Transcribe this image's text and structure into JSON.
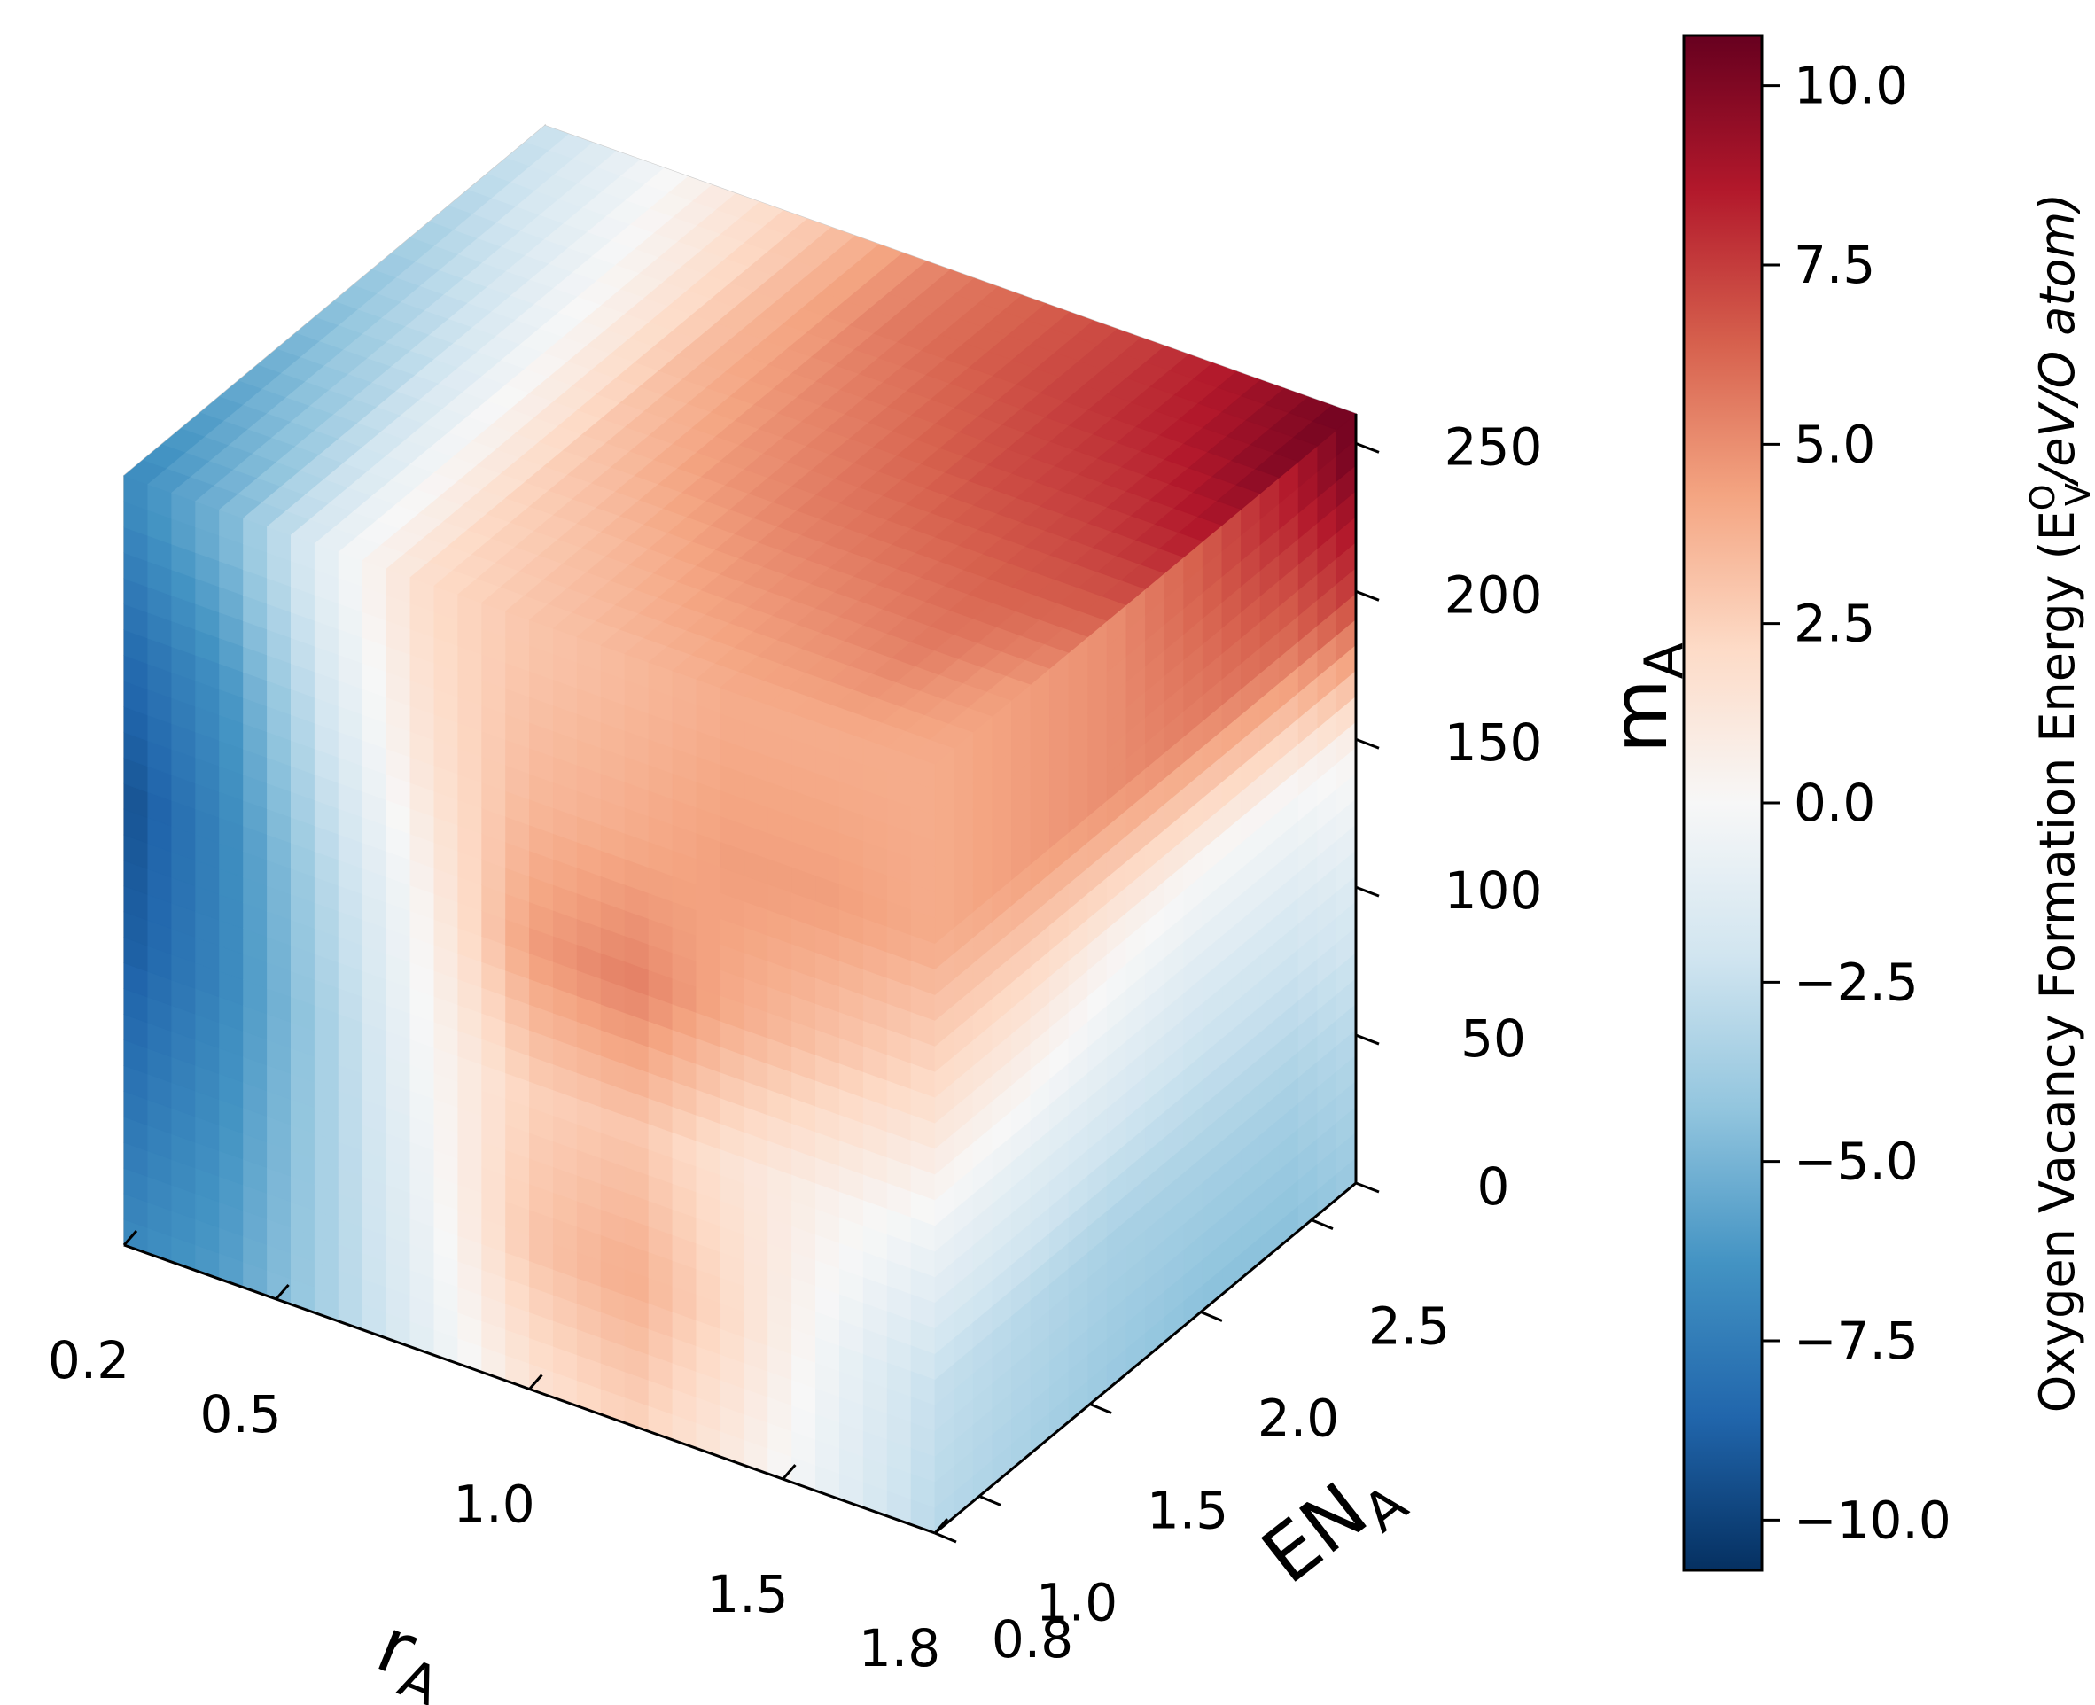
{
  "chart_data": {
    "type": "heatmap",
    "subtype": "3d-voxel-cube",
    "axes": {
      "x": {
        "label": "r",
        "label_sub": "A",
        "ticks": [
          "0.2",
          "0.5",
          "1.0",
          "1.5",
          "1.8"
        ],
        "tick_values": [
          0.2,
          0.5,
          1.0,
          1.5,
          1.8
        ],
        "range": [
          0.2,
          1.8
        ]
      },
      "y": {
        "label": "EN",
        "label_sub": "A",
        "ticks": [
          "0.8",
          "1.0",
          "1.5",
          "2.0",
          "2.5"
        ],
        "tick_values": [
          0.8,
          1.0,
          1.5,
          2.0,
          2.5
        ],
        "range": [
          0.8,
          2.7
        ]
      },
      "z": {
        "label": "m",
        "label_sub": "A",
        "ticks": [
          "0",
          "50",
          "100",
          "150",
          "200",
          "250"
        ],
        "tick_values": [
          0,
          50,
          100,
          150,
          200,
          250
        ],
        "range": [
          0,
          260
        ]
      }
    },
    "faces": {
      "front_rA_mA_at_EN_min": {
        "rA": [
          0.2,
          0.4,
          0.6,
          0.8,
          1.0,
          1.2,
          1.4,
          1.6,
          1.8
        ],
        "mA": [
          0,
          50,
          100,
          150,
          200,
          250
        ],
        "values": [
          [
            -7.0,
            -6.0,
            -3.5,
            -1.0,
            1.5,
            2.5,
            1.0,
            -1.0,
            -3.0
          ],
          [
            -8.0,
            -6.5,
            -3.5,
            -0.5,
            3.0,
            4.0,
            2.0,
            -0.5,
            -2.5
          ],
          [
            -9.0,
            -7.0,
            -3.5,
            0.0,
            2.5,
            3.0,
            1.5,
            0.5,
            -0.5
          ],
          [
            -9.5,
            -7.0,
            -3.0,
            0.5,
            4.5,
            5.5,
            4.0,
            3.0,
            2.0
          ],
          [
            -8.5,
            -6.5,
            -2.0,
            1.5,
            3.5,
            4.0,
            4.5,
            4.5,
            4.0
          ],
          [
            -7.0,
            -5.0,
            -1.0,
            2.0,
            3.0,
            3.5,
            4.0,
            4.0,
            4.0
          ]
        ]
      },
      "side_EN_mA_at_rA_max": {
        "EN": [
          0.8,
          1.2,
          1.6,
          2.0,
          2.4,
          2.7
        ],
        "mA": [
          0,
          50,
          100,
          150,
          200,
          250
        ],
        "values": [
          [
            -3.0,
            -3.5,
            -4.0,
            -4.5,
            -4.5,
            -4.0
          ],
          [
            -2.5,
            -3.0,
            -3.5,
            -3.5,
            -3.5,
            -3.0
          ],
          [
            -0.5,
            -1.0,
            -1.5,
            -2.0,
            -2.0,
            -1.5
          ],
          [
            2.0,
            1.5,
            0.5,
            0.0,
            0.0,
            0.5
          ],
          [
            4.0,
            4.5,
            5.0,
            5.5,
            6.0,
            7.5
          ],
          [
            4.0,
            4.5,
            5.0,
            6.5,
            8.5,
            10.5
          ]
        ]
      },
      "top_rA_EN_at_mA_max": {
        "rA": [
          0.2,
          0.4,
          0.6,
          0.8,
          1.0,
          1.2,
          1.4,
          1.6,
          1.8
        ],
        "EN": [
          0.8,
          1.2,
          1.6,
          2.0,
          2.4,
          2.7
        ],
        "values": [
          [
            -7.0,
            -5.0,
            -1.0,
            2.0,
            3.0,
            3.5,
            4.0,
            4.0,
            4.0
          ],
          [
            -6.0,
            -4.0,
            -0.5,
            2.5,
            3.5,
            4.5,
            5.0,
            5.5,
            4.5
          ],
          [
            -5.0,
            -3.0,
            0.0,
            3.0,
            4.5,
            5.5,
            6.0,
            6.5,
            6.5
          ],
          [
            -4.0,
            -2.0,
            0.5,
            3.5,
            5.0,
            6.0,
            7.0,
            7.5,
            8.5
          ],
          [
            -3.0,
            -1.0,
            1.0,
            3.5,
            5.5,
            6.5,
            7.5,
            8.5,
            10.0
          ],
          [
            -2.5,
            -0.5,
            1.5,
            3.5,
            5.5,
            6.5,
            7.5,
            9.0,
            10.5
          ]
        ]
      }
    },
    "colorbar": {
      "label": "Oxygen Vacancy Formation Energy (E",
      "label_sup": "O",
      "label_sub": "V",
      "label_tail": "/eV/O atom)",
      "range": [
        -10.7,
        10.7
      ],
      "ticks": [
        "10.0",
        "7.5",
        "5.0",
        "2.5",
        "0.0",
        "−2.5",
        "−5.0",
        "−7.5",
        "−10.0"
      ],
      "tick_values": [
        10.0,
        7.5,
        5.0,
        2.5,
        0.0,
        -2.5,
        -5.0,
        -7.5,
        -10.0
      ],
      "colormap": "RdBu_r"
    },
    "grid": true,
    "pane_color": "#f2f2f2",
    "grid_color": "#cccccc"
  }
}
